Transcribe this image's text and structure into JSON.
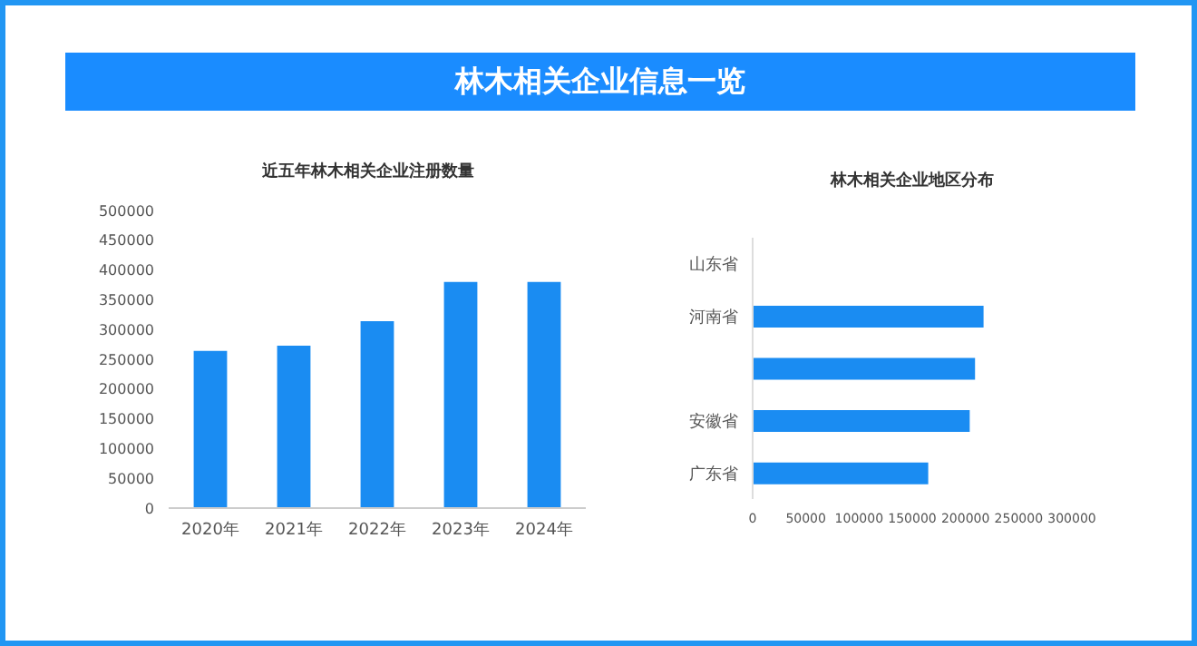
{
  "chart_data": [
    {
      "type": "bar",
      "title": "林木相关企业信息一览",
      "subtitle": "近五年林木相关企业注册数量",
      "categories": [
        "2020年",
        "2021年",
        "2022年",
        "2023年",
        "2024年"
      ],
      "values": [
        264000,
        273000,
        314000,
        380000,
        380000
      ],
      "color": "#1a8cf2",
      "ylim": [
        0,
        500000
      ],
      "yticks": [
        0,
        50000,
        100000,
        150000,
        200000,
        250000,
        300000,
        350000,
        400000,
        450000,
        500000
      ],
      "grid": false
    },
    {
      "type": "bar",
      "orientation": "horizontal",
      "title": "林木相关企业地区分布",
      "categories": [
        "山东省",
        "河南省",
        null,
        "安徽省",
        "广东省"
      ],
      "values": [
        null,
        217000,
        209000,
        204000,
        165000
      ],
      "color": "#1a8cf2",
      "xlim": [
        0,
        300000
      ],
      "xticks": [
        0,
        50000,
        100000,
        150000,
        200000,
        250000,
        300000
      ],
      "grid": false
    }
  ]
}
